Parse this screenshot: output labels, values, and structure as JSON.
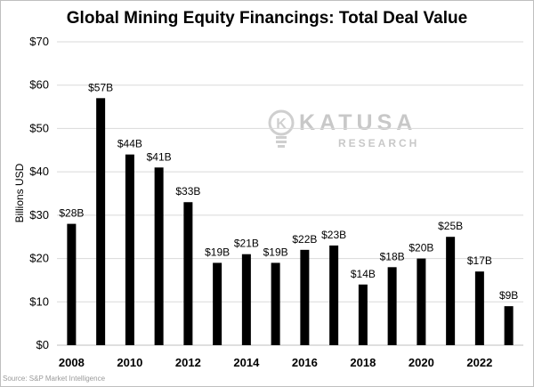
{
  "chart_data": {
    "type": "bar",
    "title": "Global Mining Equity Financings: Total Deal Value",
    "ylabel": "Billions USD",
    "xlabel": "",
    "ylim": [
      0,
      70
    ],
    "yticks": [
      "$0",
      "$10",
      "$20",
      "$30",
      "$40",
      "$50",
      "$60",
      "$70"
    ],
    "xtick_labels": [
      "2008",
      "2010",
      "2012",
      "2014",
      "2016",
      "2018",
      "2020",
      "2022"
    ],
    "categories": [
      2008,
      2009,
      2010,
      2011,
      2012,
      2013,
      2014,
      2015,
      2016,
      2017,
      2018,
      2019,
      2020,
      2021,
      2022,
      2023
    ],
    "values": [
      28,
      57,
      44,
      41,
      33,
      19,
      21,
      19,
      22,
      23,
      14,
      18,
      20,
      25,
      17,
      9
    ],
    "data_labels": [
      "$28B",
      "$57B",
      "$44B",
      "$41B",
      "$33B",
      "$19B",
      "$21B",
      "$19B",
      "$22B",
      "$23B",
      "$14B",
      "$18B",
      "$20B",
      "$25B",
      "$17B",
      "$9B"
    ],
    "grid": true,
    "bar_color": "#000000",
    "grid_color": "#d9d9d9",
    "legend": "none"
  },
  "watermark": {
    "brand": "KATUSA",
    "sub": "RESEARCH",
    "icon": "lightbulb-k-icon"
  },
  "source": "Source: S&P Market Intelligence"
}
